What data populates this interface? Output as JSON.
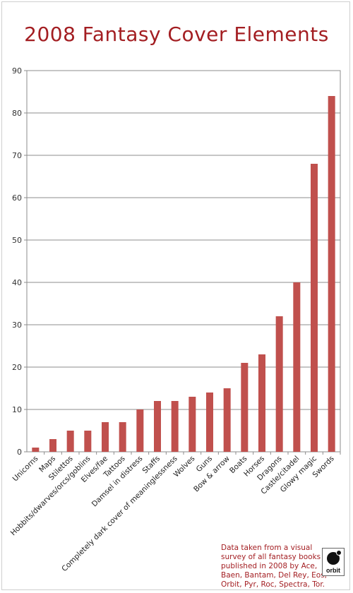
{
  "title": "2008 Fantasy Cover Elements",
  "footnote": "Data taken from a visual survey of all fantasy books published in 2008 by Ace, Baen, Bantam, Del Rey, Eos, Orbit, Pyr, Roc, Spectra, Tor.",
  "logo": {
    "text": "orbit"
  },
  "colors": {
    "title": "#a31e22",
    "bar": "#c0504d",
    "grid": "#8c8c8c"
  },
  "chart_data": {
    "type": "bar",
    "title": "2008 Fantasy Cover Elements",
    "xlabel": "",
    "ylabel": "",
    "ylim": [
      0,
      90
    ],
    "yticks": [
      0,
      10,
      20,
      30,
      40,
      50,
      60,
      70,
      80,
      90
    ],
    "grid": true,
    "legend": "none",
    "categories": [
      "Unicorns",
      "Maps",
      "Stilettos",
      "Hobbits/dwarves/orcs/goblins",
      "Elves/fae",
      "Tattoos",
      "Damsel in distress",
      "Staffs",
      "Completely dark cover of meaninglessness",
      "Wolves",
      "Guns",
      "Bow & arrow",
      "Boats",
      "Horses",
      "Dragons",
      "Castle/citadel",
      "Glowy magic",
      "Swords"
    ],
    "values": [
      1,
      3,
      5,
      5,
      7,
      7,
      10,
      12,
      12,
      13,
      14,
      15,
      21,
      23,
      32,
      40,
      68,
      84
    ]
  }
}
